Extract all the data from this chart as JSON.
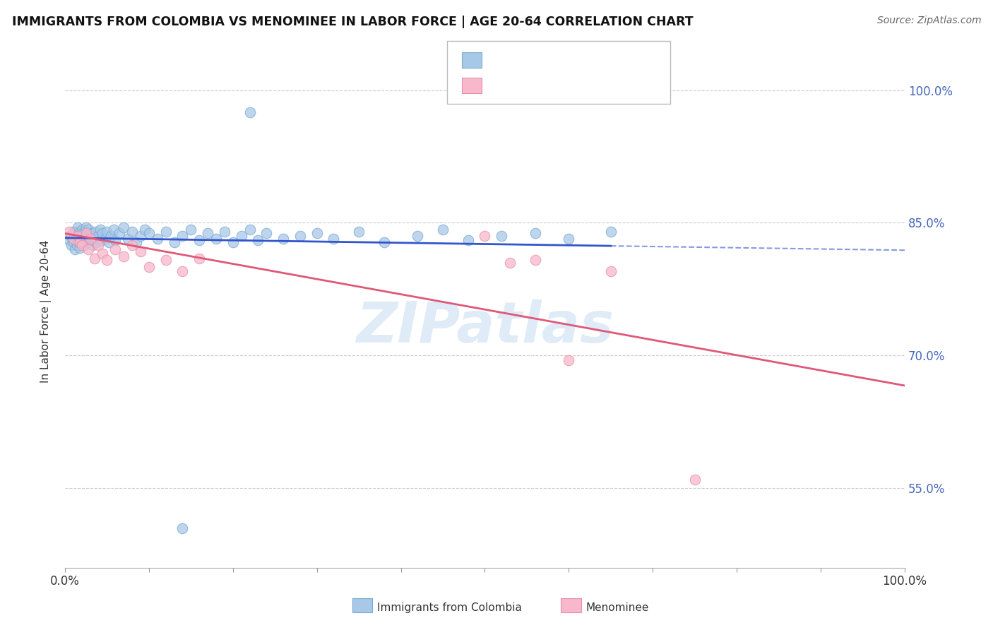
{
  "title": "IMMIGRANTS FROM COLOMBIA VS MENOMINEE IN LABOR FORCE | AGE 20-64 CORRELATION CHART",
  "source": "Source: ZipAtlas.com",
  "ylabel": "In Labor Force | Age 20-64",
  "xlim": [
    0.0,
    1.0
  ],
  "ylim": [
    0.46,
    1.04
  ],
  "yticks": [
    0.55,
    0.7,
    0.85,
    1.0
  ],
  "blue_color": "#a8c8e8",
  "pink_color": "#f8b8cc",
  "blue_edge": "#7aaad0",
  "pink_edge": "#e890a8",
  "trend_blue_color": "#3355cc",
  "trend_pink_color": "#e05878",
  "watermark": "ZIPatlas",
  "colombia_x": [
    0.005,
    0.007,
    0.008,
    0.01,
    0.01,
    0.01,
    0.012,
    0.012,
    0.013,
    0.014,
    0.015,
    0.015,
    0.016,
    0.017,
    0.018,
    0.018,
    0.019,
    0.02,
    0.02,
    0.02,
    0.021,
    0.022,
    0.023,
    0.024,
    0.025,
    0.025,
    0.026,
    0.027,
    0.028,
    0.03,
    0.032,
    0.033,
    0.035,
    0.036,
    0.038,
    0.04,
    0.042,
    0.043,
    0.045,
    0.048,
    0.05,
    0.052,
    0.055,
    0.058,
    0.06,
    0.065,
    0.07,
    0.075,
    0.08,
    0.085,
    0.09,
    0.095,
    0.1,
    0.11,
    0.12,
    0.13,
    0.14,
    0.15,
    0.16,
    0.17,
    0.18,
    0.19,
    0.2,
    0.21,
    0.22,
    0.23,
    0.24,
    0.26,
    0.28,
    0.3,
    0.32,
    0.35,
    0.38,
    0.42,
    0.45,
    0.48,
    0.52,
    0.56,
    0.6,
    0.65,
    0.22,
    0.14
  ],
  "colombia_y": [
    0.83,
    0.835,
    0.825,
    0.832,
    0.828,
    0.84,
    0.835,
    0.82,
    0.838,
    0.825,
    0.832,
    0.845,
    0.828,
    0.835,
    0.84,
    0.822,
    0.83,
    0.835,
    0.828,
    0.842,
    0.838,
    0.832,
    0.825,
    0.84,
    0.83,
    0.845,
    0.835,
    0.828,
    0.842,
    0.835,
    0.838,
    0.825,
    0.832,
    0.84,
    0.828,
    0.835,
    0.842,
    0.83,
    0.838,
    0.832,
    0.84,
    0.828,
    0.835,
    0.842,
    0.83,
    0.838,
    0.845,
    0.832,
    0.84,
    0.828,
    0.835,
    0.842,
    0.838,
    0.832,
    0.84,
    0.828,
    0.835,
    0.842,
    0.83,
    0.838,
    0.832,
    0.84,
    0.828,
    0.835,
    0.842,
    0.83,
    0.838,
    0.832,
    0.835,
    0.838,
    0.832,
    0.84,
    0.828,
    0.835,
    0.842,
    0.83,
    0.835,
    0.838,
    0.832,
    0.84,
    0.975,
    0.505
  ],
  "menominee_x": [
    0.005,
    0.01,
    0.015,
    0.018,
    0.02,
    0.025,
    0.028,
    0.03,
    0.035,
    0.04,
    0.045,
    0.05,
    0.06,
    0.07,
    0.08,
    0.09,
    0.1,
    0.12,
    0.14,
    0.16,
    0.5,
    0.53,
    0.56,
    0.6,
    0.65,
    0.75
  ],
  "menominee_y": [
    0.84,
    0.832,
    0.835,
    0.828,
    0.825,
    0.838,
    0.82,
    0.832,
    0.81,
    0.825,
    0.815,
    0.808,
    0.82,
    0.812,
    0.825,
    0.818,
    0.8,
    0.808,
    0.795,
    0.81,
    0.835,
    0.805,
    0.808,
    0.695,
    0.795,
    0.56
  ]
}
